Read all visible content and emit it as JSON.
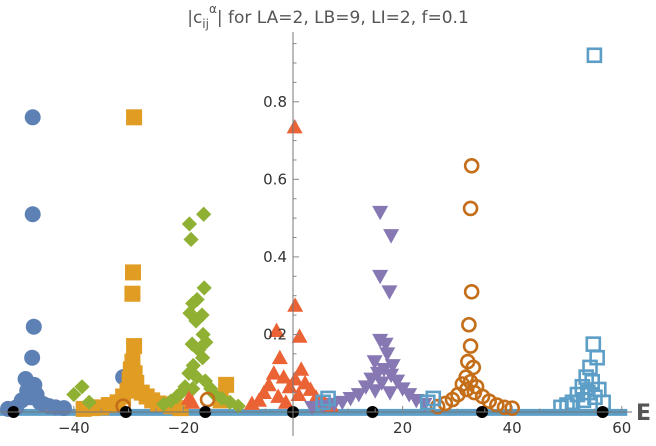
{
  "chart_data": {
    "type": "scatter",
    "title": "|c_ij^α| for LA=2, LB=9, LI=2, f=0.1",
    "title_parts": {
      "pre": "|c",
      "sub": "ij",
      "sup": "α",
      "post": "| for LA=2, LB=9, LI=2, f=0.1"
    },
    "xlabel": "E",
    "ylabel": "",
    "xlim": [
      -55,
      62
    ],
    "ylim": [
      -0.02,
      0.98
    ],
    "xticks": [
      -40,
      -20,
      20,
      40,
      60
    ],
    "xtick_labels": [
      "−40",
      "−20",
      "20",
      "40",
      "60"
    ],
    "yticks": [
      0.2,
      0.4,
      0.6,
      0.8
    ],
    "ytick_labels": [
      "0.2",
      "0.4",
      "0.6",
      "0.8"
    ],
    "grid": false,
    "colors": {
      "blue": "#5E81B5",
      "orange": "#E19C24",
      "green": "#8FB032",
      "red": "#EB6235",
      "purple": "#8778B3",
      "brown": "#C56E1A",
      "lightblue": "#5D9EC7",
      "black": "#000000"
    },
    "baseline_band": {
      "y_range": [
        -0.01,
        0.008
      ],
      "color": "#5D9EC7"
    },
    "series": [
      {
        "name": "blue circles",
        "marker": "circle",
        "color": "#5E81B5",
        "points": [
          {
            "x": -47.5,
            "y": 0.76
          },
          {
            "x": -47.5,
            "y": 0.51
          },
          {
            "x": -47.3,
            "y": 0.22
          },
          {
            "x": -47.6,
            "y": 0.14
          },
          {
            "x": -48.8,
            "y": 0.085
          },
          {
            "x": -47.2,
            "y": 0.07
          },
          {
            "x": -48.5,
            "y": 0.055
          },
          {
            "x": -46.8,
            "y": 0.045
          },
          {
            "x": -47.9,
            "y": 0.038
          },
          {
            "x": -49.5,
            "y": 0.03
          },
          {
            "x": -46.2,
            "y": 0.025
          },
          {
            "x": -45.5,
            "y": 0.02
          },
          {
            "x": -44.5,
            "y": 0.015
          },
          {
            "x": -43.3,
            "y": 0.012
          },
          {
            "x": -41.8,
            "y": 0.01
          },
          {
            "x": -50.5,
            "y": 0.012
          },
          {
            "x": -52.0,
            "y": 0.008
          },
          {
            "x": -31.0,
            "y": 0.09
          }
        ]
      },
      {
        "name": "orange squares",
        "marker": "square",
        "color": "#E19C24",
        "points": [
          {
            "x": -29.0,
            "y": 0.76
          },
          {
            "x": -29.2,
            "y": 0.36
          },
          {
            "x": -29.3,
            "y": 0.305
          },
          {
            "x": -29.0,
            "y": 0.17
          },
          {
            "x": -29.3,
            "y": 0.13
          },
          {
            "x": -29.6,
            "y": 0.11
          },
          {
            "x": -28.9,
            "y": 0.1
          },
          {
            "x": -29.8,
            "y": 0.085
          },
          {
            "x": -28.6,
            "y": 0.075
          },
          {
            "x": -29.1,
            "y": 0.065
          },
          {
            "x": -30.2,
            "y": 0.055
          },
          {
            "x": -27.6,
            "y": 0.05
          },
          {
            "x": -26.7,
            "y": 0.04
          },
          {
            "x": -31.0,
            "y": 0.04
          },
          {
            "x": -25.7,
            "y": 0.03
          },
          {
            "x": -32.0,
            "y": 0.025
          },
          {
            "x": -24.6,
            "y": 0.022
          },
          {
            "x": -23.5,
            "y": 0.02
          },
          {
            "x": -33.6,
            "y": 0.018
          },
          {
            "x": -22.2,
            "y": 0.015
          },
          {
            "x": -35.0,
            "y": 0.012
          },
          {
            "x": -20.5,
            "y": 0.01
          },
          {
            "x": -36.6,
            "y": 0.01
          },
          {
            "x": -38.2,
            "y": 0.008
          },
          {
            "x": -12.2,
            "y": 0.07
          },
          {
            "x": -13.2,
            "y": 0.03
          }
        ]
      },
      {
        "name": "green diamonds",
        "marker": "diamond",
        "color": "#8FB032",
        "points": [
          {
            "x": -16.3,
            "y": 0.51
          },
          {
            "x": -18.9,
            "y": 0.485
          },
          {
            "x": -18.6,
            "y": 0.445
          },
          {
            "x": -16.2,
            "y": 0.32
          },
          {
            "x": -17.5,
            "y": 0.29
          },
          {
            "x": -18.3,
            "y": 0.28
          },
          {
            "x": -18.8,
            "y": 0.255
          },
          {
            "x": -16.6,
            "y": 0.25
          },
          {
            "x": -17.7,
            "y": 0.235
          },
          {
            "x": -16.4,
            "y": 0.2
          },
          {
            "x": -15.9,
            "y": 0.18
          },
          {
            "x": -18.4,
            "y": 0.175
          },
          {
            "x": -17.2,
            "y": 0.16
          },
          {
            "x": -16.5,
            "y": 0.14
          },
          {
            "x": -18.2,
            "y": 0.12
          },
          {
            "x": -19.0,
            "y": 0.1
          },
          {
            "x": -17.6,
            "y": 0.09
          },
          {
            "x": -16.0,
            "y": 0.08
          },
          {
            "x": -19.7,
            "y": 0.065
          },
          {
            "x": -18.3,
            "y": 0.06
          },
          {
            "x": -15.0,
            "y": 0.06
          },
          {
            "x": -20.4,
            "y": 0.05
          },
          {
            "x": -14.3,
            "y": 0.045
          },
          {
            "x": -21.2,
            "y": 0.04
          },
          {
            "x": -13.0,
            "y": 0.035
          },
          {
            "x": -22.3,
            "y": 0.028
          },
          {
            "x": -11.5,
            "y": 0.025
          },
          {
            "x": -23.6,
            "y": 0.02
          },
          {
            "x": -10.0,
            "y": 0.015
          },
          {
            "x": -38.5,
            "y": 0.065
          },
          {
            "x": -40.0,
            "y": 0.045
          },
          {
            "x": -37.2,
            "y": 0.025
          }
        ]
      },
      {
        "name": "red triangles",
        "marker": "triangle-up",
        "color": "#EB6235",
        "points": [
          {
            "x": 0.3,
            "y": 0.735
          },
          {
            "x": 0.4,
            "y": 0.275
          },
          {
            "x": -3.0,
            "y": 0.21
          },
          {
            "x": 1.2,
            "y": 0.195
          },
          {
            "x": -2.4,
            "y": 0.14
          },
          {
            "x": 1.5,
            "y": 0.11
          },
          {
            "x": -3.5,
            "y": 0.1
          },
          {
            "x": -1.7,
            "y": 0.09
          },
          {
            "x": 0.4,
            "y": 0.085
          },
          {
            "x": 2.2,
            "y": 0.075
          },
          {
            "x": -4.4,
            "y": 0.07
          },
          {
            "x": -0.6,
            "y": 0.065
          },
          {
            "x": 3.2,
            "y": 0.058
          },
          {
            "x": -5.3,
            "y": 0.05
          },
          {
            "x": 1.0,
            "y": 0.045
          },
          {
            "x": -2.7,
            "y": 0.04
          },
          {
            "x": 4.2,
            "y": 0.038
          },
          {
            "x": -6.2,
            "y": 0.03
          },
          {
            "x": 5.7,
            "y": 0.025
          },
          {
            "x": -7.5,
            "y": 0.022
          },
          {
            "x": -1.3,
            "y": 0.025
          },
          {
            "x": 7.0,
            "y": 0.016
          },
          {
            "x": -19.0,
            "y": 0.035
          },
          {
            "x": -18.4,
            "y": 0.025
          }
        ]
      },
      {
        "name": "purple triangles",
        "marker": "triangle-down",
        "color": "#8778B3",
        "points": [
          {
            "x": 15.9,
            "y": 0.515
          },
          {
            "x": 17.9,
            "y": 0.455
          },
          {
            "x": 15.9,
            "y": 0.35
          },
          {
            "x": 17.6,
            "y": 0.31
          },
          {
            "x": 15.9,
            "y": 0.185
          },
          {
            "x": 16.9,
            "y": 0.175
          },
          {
            "x": 17.2,
            "y": 0.15
          },
          {
            "x": 14.9,
            "y": 0.13
          },
          {
            "x": 18.2,
            "y": 0.12
          },
          {
            "x": 16.6,
            "y": 0.11
          },
          {
            "x": 15.5,
            "y": 0.1
          },
          {
            "x": 17.9,
            "y": 0.095
          },
          {
            "x": 14.3,
            "y": 0.085
          },
          {
            "x": 19.0,
            "y": 0.08
          },
          {
            "x": 16.2,
            "y": 0.075
          },
          {
            "x": 13.3,
            "y": 0.065
          },
          {
            "x": 20.0,
            "y": 0.06
          },
          {
            "x": 15.0,
            "y": 0.055
          },
          {
            "x": 17.7,
            "y": 0.05
          },
          {
            "x": 12.0,
            "y": 0.045
          },
          {
            "x": 21.2,
            "y": 0.045
          },
          {
            "x": 10.5,
            "y": 0.035
          },
          {
            "x": 22.5,
            "y": 0.03
          },
          {
            "x": 9.0,
            "y": 0.025
          },
          {
            "x": 7.5,
            "y": 0.02
          },
          {
            "x": 24.0,
            "y": 0.02
          },
          {
            "x": 5.5,
            "y": 0.015
          },
          {
            "x": 3.5,
            "y": 0.012
          }
        ]
      },
      {
        "name": "brown open circles",
        "marker": "open-circle",
        "color": "#C56E1A",
        "points": [
          {
            "x": 32.6,
            "y": 0.635
          },
          {
            "x": 32.4,
            "y": 0.525
          },
          {
            "x": 32.6,
            "y": 0.31
          },
          {
            "x": 32.1,
            "y": 0.225
          },
          {
            "x": 32.4,
            "y": 0.17
          },
          {
            "x": 31.9,
            "y": 0.13
          },
          {
            "x": 32.9,
            "y": 0.115
          },
          {
            "x": 31.6,
            "y": 0.09
          },
          {
            "x": 32.4,
            "y": 0.078
          },
          {
            "x": 30.9,
            "y": 0.072
          },
          {
            "x": 33.5,
            "y": 0.065
          },
          {
            "x": 31.7,
            "y": 0.058
          },
          {
            "x": 33.1,
            "y": 0.05
          },
          {
            "x": 30.1,
            "y": 0.045
          },
          {
            "x": 34.6,
            "y": 0.04
          },
          {
            "x": 29.1,
            "y": 0.032
          },
          {
            "x": 35.8,
            "y": 0.028
          },
          {
            "x": 27.8,
            "y": 0.022
          },
          {
            "x": 37.2,
            "y": 0.018
          },
          {
            "x": 26.4,
            "y": 0.014
          },
          {
            "x": 38.6,
            "y": 0.012
          },
          {
            "x": 40.0,
            "y": 0.01
          },
          {
            "x": -15.6,
            "y": 0.032
          },
          {
            "x": -31.0,
            "y": 0.015
          }
        ]
      },
      {
        "name": "lightblue open squares",
        "marker": "open-square",
        "color": "#5D9EC7",
        "points": [
          {
            "x": 55.0,
            "y": 0.92
          },
          {
            "x": 54.8,
            "y": 0.175
          },
          {
            "x": 55.5,
            "y": 0.14
          },
          {
            "x": 54.2,
            "y": 0.115
          },
          {
            "x": 53.5,
            "y": 0.09
          },
          {
            "x": 54.6,
            "y": 0.078
          },
          {
            "x": 52.8,
            "y": 0.065
          },
          {
            "x": 55.8,
            "y": 0.058
          },
          {
            "x": 53.8,
            "y": 0.05
          },
          {
            "x": 51.9,
            "y": 0.045
          },
          {
            "x": 55.1,
            "y": 0.038
          },
          {
            "x": 53.0,
            "y": 0.03
          },
          {
            "x": 51.0,
            "y": 0.025
          },
          {
            "x": 50.0,
            "y": 0.018
          },
          {
            "x": 48.9,
            "y": 0.012
          },
          {
            "x": 56.6,
            "y": 0.025
          },
          {
            "x": 25.6,
            "y": 0.035
          },
          {
            "x": 24.6,
            "y": 0.025
          },
          {
            "x": 6.4,
            "y": 0.035
          },
          {
            "x": 5.5,
            "y": 0.025
          }
        ]
      },
      {
        "name": "black dots",
        "marker": "circle",
        "color": "#000000",
        "points": [
          {
            "x": -51.0,
            "y": 0.0
          },
          {
            "x": -30.5,
            "y": 0.0
          },
          {
            "x": -16.0,
            "y": 0.0
          },
          {
            "x": 0.0,
            "y": 0.0
          },
          {
            "x": 14.5,
            "y": 0.0
          },
          {
            "x": 34.5,
            "y": 0.0
          },
          {
            "x": 56.5,
            "y": 0.0
          }
        ]
      }
    ]
  }
}
